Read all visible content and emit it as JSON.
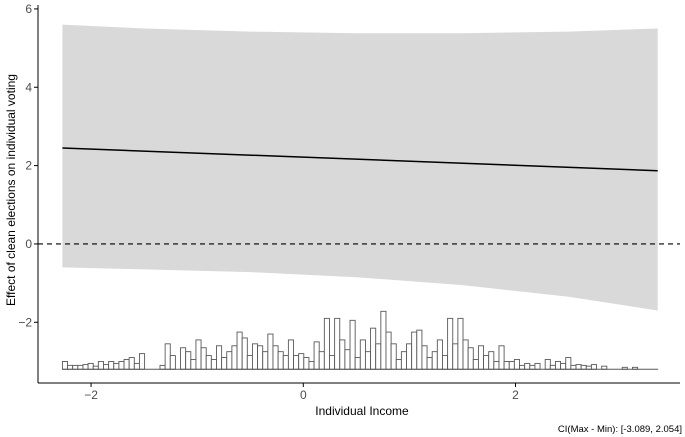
{
  "chart_data": {
    "type": "line",
    "xlabel": "Individual Income",
    "ylabel": "Effect of clean elections on individual voting",
    "caption": "CI(Max - Min): [-3.089, 2.054]",
    "xlim": [
      -2.5,
      3.55
    ],
    "ylim": [
      -3.55,
      6.1
    ],
    "x_ticks": [
      -2,
      0,
      2
    ],
    "y_ticks": [
      -2,
      0,
      2,
      4,
      6
    ],
    "grid": false,
    "colors": {
      "ribbon": "#d9d9d9",
      "line": "#000000",
      "hist_bar_stroke": "#595959",
      "hist_bar_fill": "#ffffff",
      "reference_line": "#000000"
    },
    "series": [
      {
        "type": "line",
        "x": [
          -2.27,
          3.34
        ],
        "values": [
          2.45,
          1.87
        ]
      },
      {
        "type": "ribbon",
        "x": [
          -2.27,
          -1.5,
          -0.5,
          0.5,
          1.5,
          2.5,
          3.34
        ],
        "lower": [
          -0.6,
          -0.65,
          -0.72,
          -0.85,
          -1.05,
          -1.35,
          -1.7
        ],
        "upper": [
          5.6,
          5.5,
          5.42,
          5.38,
          5.38,
          5.42,
          5.5
        ]
      }
    ],
    "reference_line": {
      "y": 0,
      "style": "dashed"
    },
    "histogram": {
      "baseline": -3.2,
      "x_start": -2.27,
      "bin_width": 0.0484,
      "tops": [
        -3.0,
        -3.1,
        -3.1,
        -3.1,
        -3.08,
        -3.05,
        -3.12,
        -3.0,
        -3.08,
        -3.0,
        -3.05,
        -3.0,
        -2.95,
        -2.9,
        -3.05,
        -2.8,
        -3.2,
        -3.2,
        -3.2,
        -3.1,
        -2.55,
        -2.85,
        -3.2,
        -2.65,
        -2.75,
        -2.95,
        -2.45,
        -2.65,
        -2.85,
        -2.95,
        -2.6,
        -2.9,
        -2.75,
        -2.6,
        -2.25,
        -2.4,
        -2.85,
        -2.55,
        -2.6,
        -2.75,
        -2.3,
        -2.6,
        -2.75,
        -2.85,
        -2.45,
        -2.85,
        -2.8,
        -2.9,
        -3.0,
        -2.5,
        -2.75,
        -1.9,
        -2.85,
        -1.9,
        -2.45,
        -2.7,
        -1.95,
        -2.9,
        -2.45,
        -2.75,
        -2.15,
        -2.55,
        -1.72,
        -2.25,
        -2.55,
        -2.95,
        -2.75,
        -2.55,
        -2.25,
        -2.2,
        -2.6,
        -2.9,
        -2.75,
        -2.45,
        -2.85,
        -1.9,
        -2.55,
        -1.9,
        -2.45,
        -2.65,
        -2.95,
        -2.6,
        -2.85,
        -2.75,
        -3.0,
        -2.6,
        -3.0,
        -3.0,
        -2.95,
        -3.1,
        -3.05,
        -3.1,
        -3.05,
        -3.2,
        -2.95,
        -3.1,
        -3.0,
        -3.05,
        -2.9,
        -3.1,
        -3.08,
        -3.1,
        -3.12,
        -3.08,
        -3.2,
        -3.12,
        -3.2,
        -3.2,
        -3.2,
        -3.15,
        -3.2,
        -3.15,
        -3.2,
        -3.2,
        -3.2,
        -3.2
      ]
    }
  }
}
